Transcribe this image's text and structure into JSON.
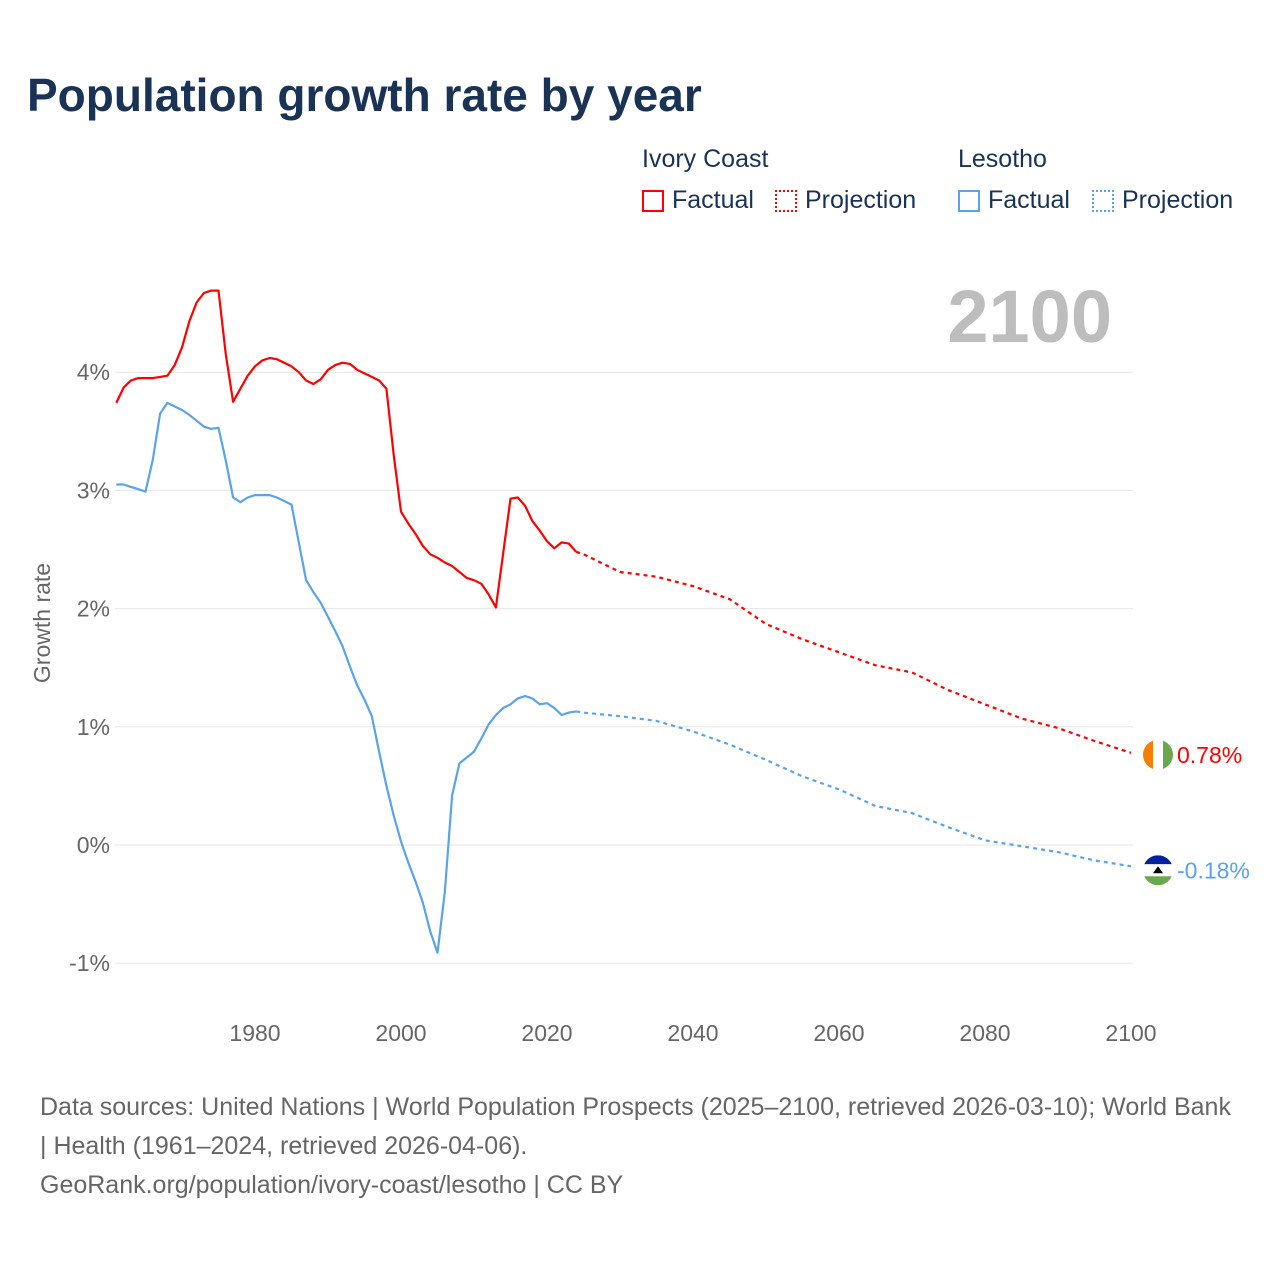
{
  "title": "Population growth rate by year",
  "legend": {
    "groups": [
      {
        "country": "Ivory Coast",
        "factual": "Factual",
        "projection": "Projection",
        "color": "#ff0000"
      },
      {
        "country": "Lesotho",
        "factual": "Factual",
        "projection": "Projection",
        "color": "#5aa3e8"
      }
    ]
  },
  "footer": {
    "sources": "Data sources: United Nations | World Population Prospects (2025–2100, retrieved 2026-03-10); World Bank | Health (1961–2024, retrieved 2026-04-06).",
    "link": "GeoRank.org/population/ivory-coast/lesotho | CC BY"
  },
  "chart_data": {
    "type": "line",
    "title": "Population growth rate by year",
    "year_label": "2100",
    "ylabel": "Growth rate",
    "xlabel": "",
    "xlim": [
      1961,
      2100
    ],
    "ylim": [
      -1.3,
      4.9
    ],
    "xticks": [
      1980,
      2000,
      2020,
      2040,
      2060,
      2080,
      2100
    ],
    "yticks": [
      {
        "v": 4,
        "label": "4%"
      },
      {
        "v": 3,
        "label": "3%"
      },
      {
        "v": 2,
        "label": "2%"
      },
      {
        "v": 1,
        "label": "1%"
      },
      {
        "v": 0,
        "label": "0%"
      },
      {
        "v": -1,
        "label": "-1%"
      }
    ],
    "grid": true,
    "legend_position": "top-right",
    "series": [
      {
        "name": "Ivory Coast",
        "color": "#ff0000",
        "end_label": "0.78%",
        "flag": "ivory-coast",
        "factual_start": 1961,
        "factual": [
          3.74,
          3.87,
          3.93,
          3.95,
          3.95,
          3.95,
          3.96,
          3.97,
          4.06,
          4.21,
          4.43,
          4.59,
          4.67,
          4.69,
          4.69,
          4.15,
          3.75,
          3.86,
          3.97,
          4.05,
          4.1,
          4.12,
          4.11,
          4.08,
          4.05,
          4.0,
          3.93,
          3.9,
          3.94,
          4.02,
          4.06,
          4.08,
          4.07,
          4.02,
          3.99,
          3.96,
          3.93,
          3.86,
          3.3,
          2.82,
          2.72,
          2.63,
          2.53,
          2.46,
          2.43,
          2.39,
          2.36,
          2.31,
          2.26,
          2.24,
          2.21,
          2.12,
          2.01,
          2.47,
          2.93,
          2.94,
          2.87,
          2.74,
          2.66,
          2.57,
          2.51,
          2.56,
          2.55,
          2.48
        ],
        "projection": [
          [
            2024,
            2.48
          ],
          [
            2025,
            2.46
          ],
          [
            2030,
            2.31
          ],
          [
            2035,
            2.27
          ],
          [
            2040,
            2.19
          ],
          [
            2045,
            2.08
          ],
          [
            2050,
            1.87
          ],
          [
            2055,
            1.74
          ],
          [
            2060,
            1.63
          ],
          [
            2065,
            1.52
          ],
          [
            2070,
            1.46
          ],
          [
            2075,
            1.31
          ],
          [
            2080,
            1.19
          ],
          [
            2085,
            1.07
          ],
          [
            2090,
            0.99
          ],
          [
            2095,
            0.88
          ],
          [
            2100,
            0.78
          ]
        ]
      },
      {
        "name": "Lesotho",
        "color": "#5aa3e8",
        "end_label": "-0.18%",
        "flag": "lesotho",
        "factual_start": 1961,
        "factual": [
          3.05,
          3.05,
          3.03,
          3.01,
          2.99,
          3.26,
          3.65,
          3.74,
          3.71,
          3.68,
          3.64,
          3.59,
          3.54,
          3.52,
          3.53,
          3.25,
          2.94,
          2.9,
          2.94,
          2.96,
          2.96,
          2.96,
          2.94,
          2.91,
          2.88,
          2.56,
          2.24,
          2.14,
          2.05,
          1.93,
          1.81,
          1.68,
          1.51,
          1.35,
          1.23,
          1.09,
          0.79,
          0.5,
          0.25,
          0.03,
          -0.15,
          -0.31,
          -0.49,
          -0.73,
          -0.91,
          -0.4,
          0.42,
          0.69,
          0.74,
          0.79,
          0.9,
          1.02,
          1.1,
          1.16,
          1.19,
          1.24,
          1.26,
          1.24,
          1.19,
          1.2,
          1.16,
          1.1,
          1.12,
          1.13
        ],
        "projection": [
          [
            2024,
            1.13
          ],
          [
            2025,
            1.12
          ],
          [
            2030,
            1.09
          ],
          [
            2035,
            1.05
          ],
          [
            2040,
            0.96
          ],
          [
            2045,
            0.85
          ],
          [
            2050,
            0.72
          ],
          [
            2055,
            0.58
          ],
          [
            2060,
            0.47
          ],
          [
            2065,
            0.33
          ],
          [
            2070,
            0.27
          ],
          [
            2075,
            0.15
          ],
          [
            2080,
            0.04
          ],
          [
            2085,
            -0.01
          ],
          [
            2090,
            -0.06
          ],
          [
            2095,
            -0.13
          ],
          [
            2100,
            -0.18
          ]
        ]
      }
    ]
  }
}
